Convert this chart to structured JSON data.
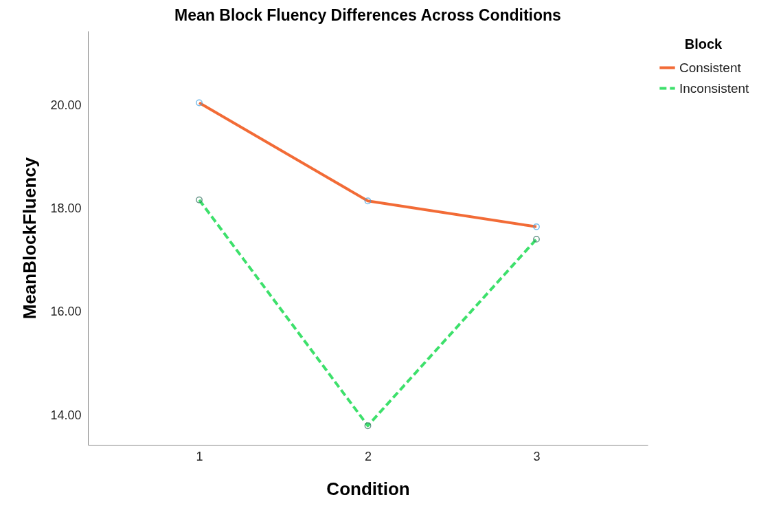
{
  "chart_data": {
    "type": "line",
    "title": "Mean Block Fluency Differences Across Conditions",
    "xlabel": "Condition",
    "ylabel": "MeanBlockFluency",
    "legend_title": "Block",
    "x": [
      1,
      2,
      3
    ],
    "series": [
      {
        "name": "Consistent",
        "color": "#f26b36",
        "line_style": "solid",
        "values": [
          20.05,
          18.15,
          17.65
        ]
      },
      {
        "name": "Inconsistent",
        "color": "#3de06b",
        "line_style": "dashed",
        "values": [
          18.17,
          13.8,
          17.41
        ]
      }
    ],
    "xlim": [
      0.34,
      3.66
    ],
    "xticks": [
      1,
      2,
      3
    ],
    "ylim": [
      13.43,
      21.44
    ],
    "yticks": [
      {
        "value": 14,
        "label": "14.00"
      },
      {
        "value": 16,
        "label": "16.00"
      },
      {
        "value": 18,
        "label": "18.00"
      },
      {
        "value": 20,
        "label": "20.00"
      }
    ],
    "grid": false,
    "legend": "top right",
    "marker": "circle"
  }
}
